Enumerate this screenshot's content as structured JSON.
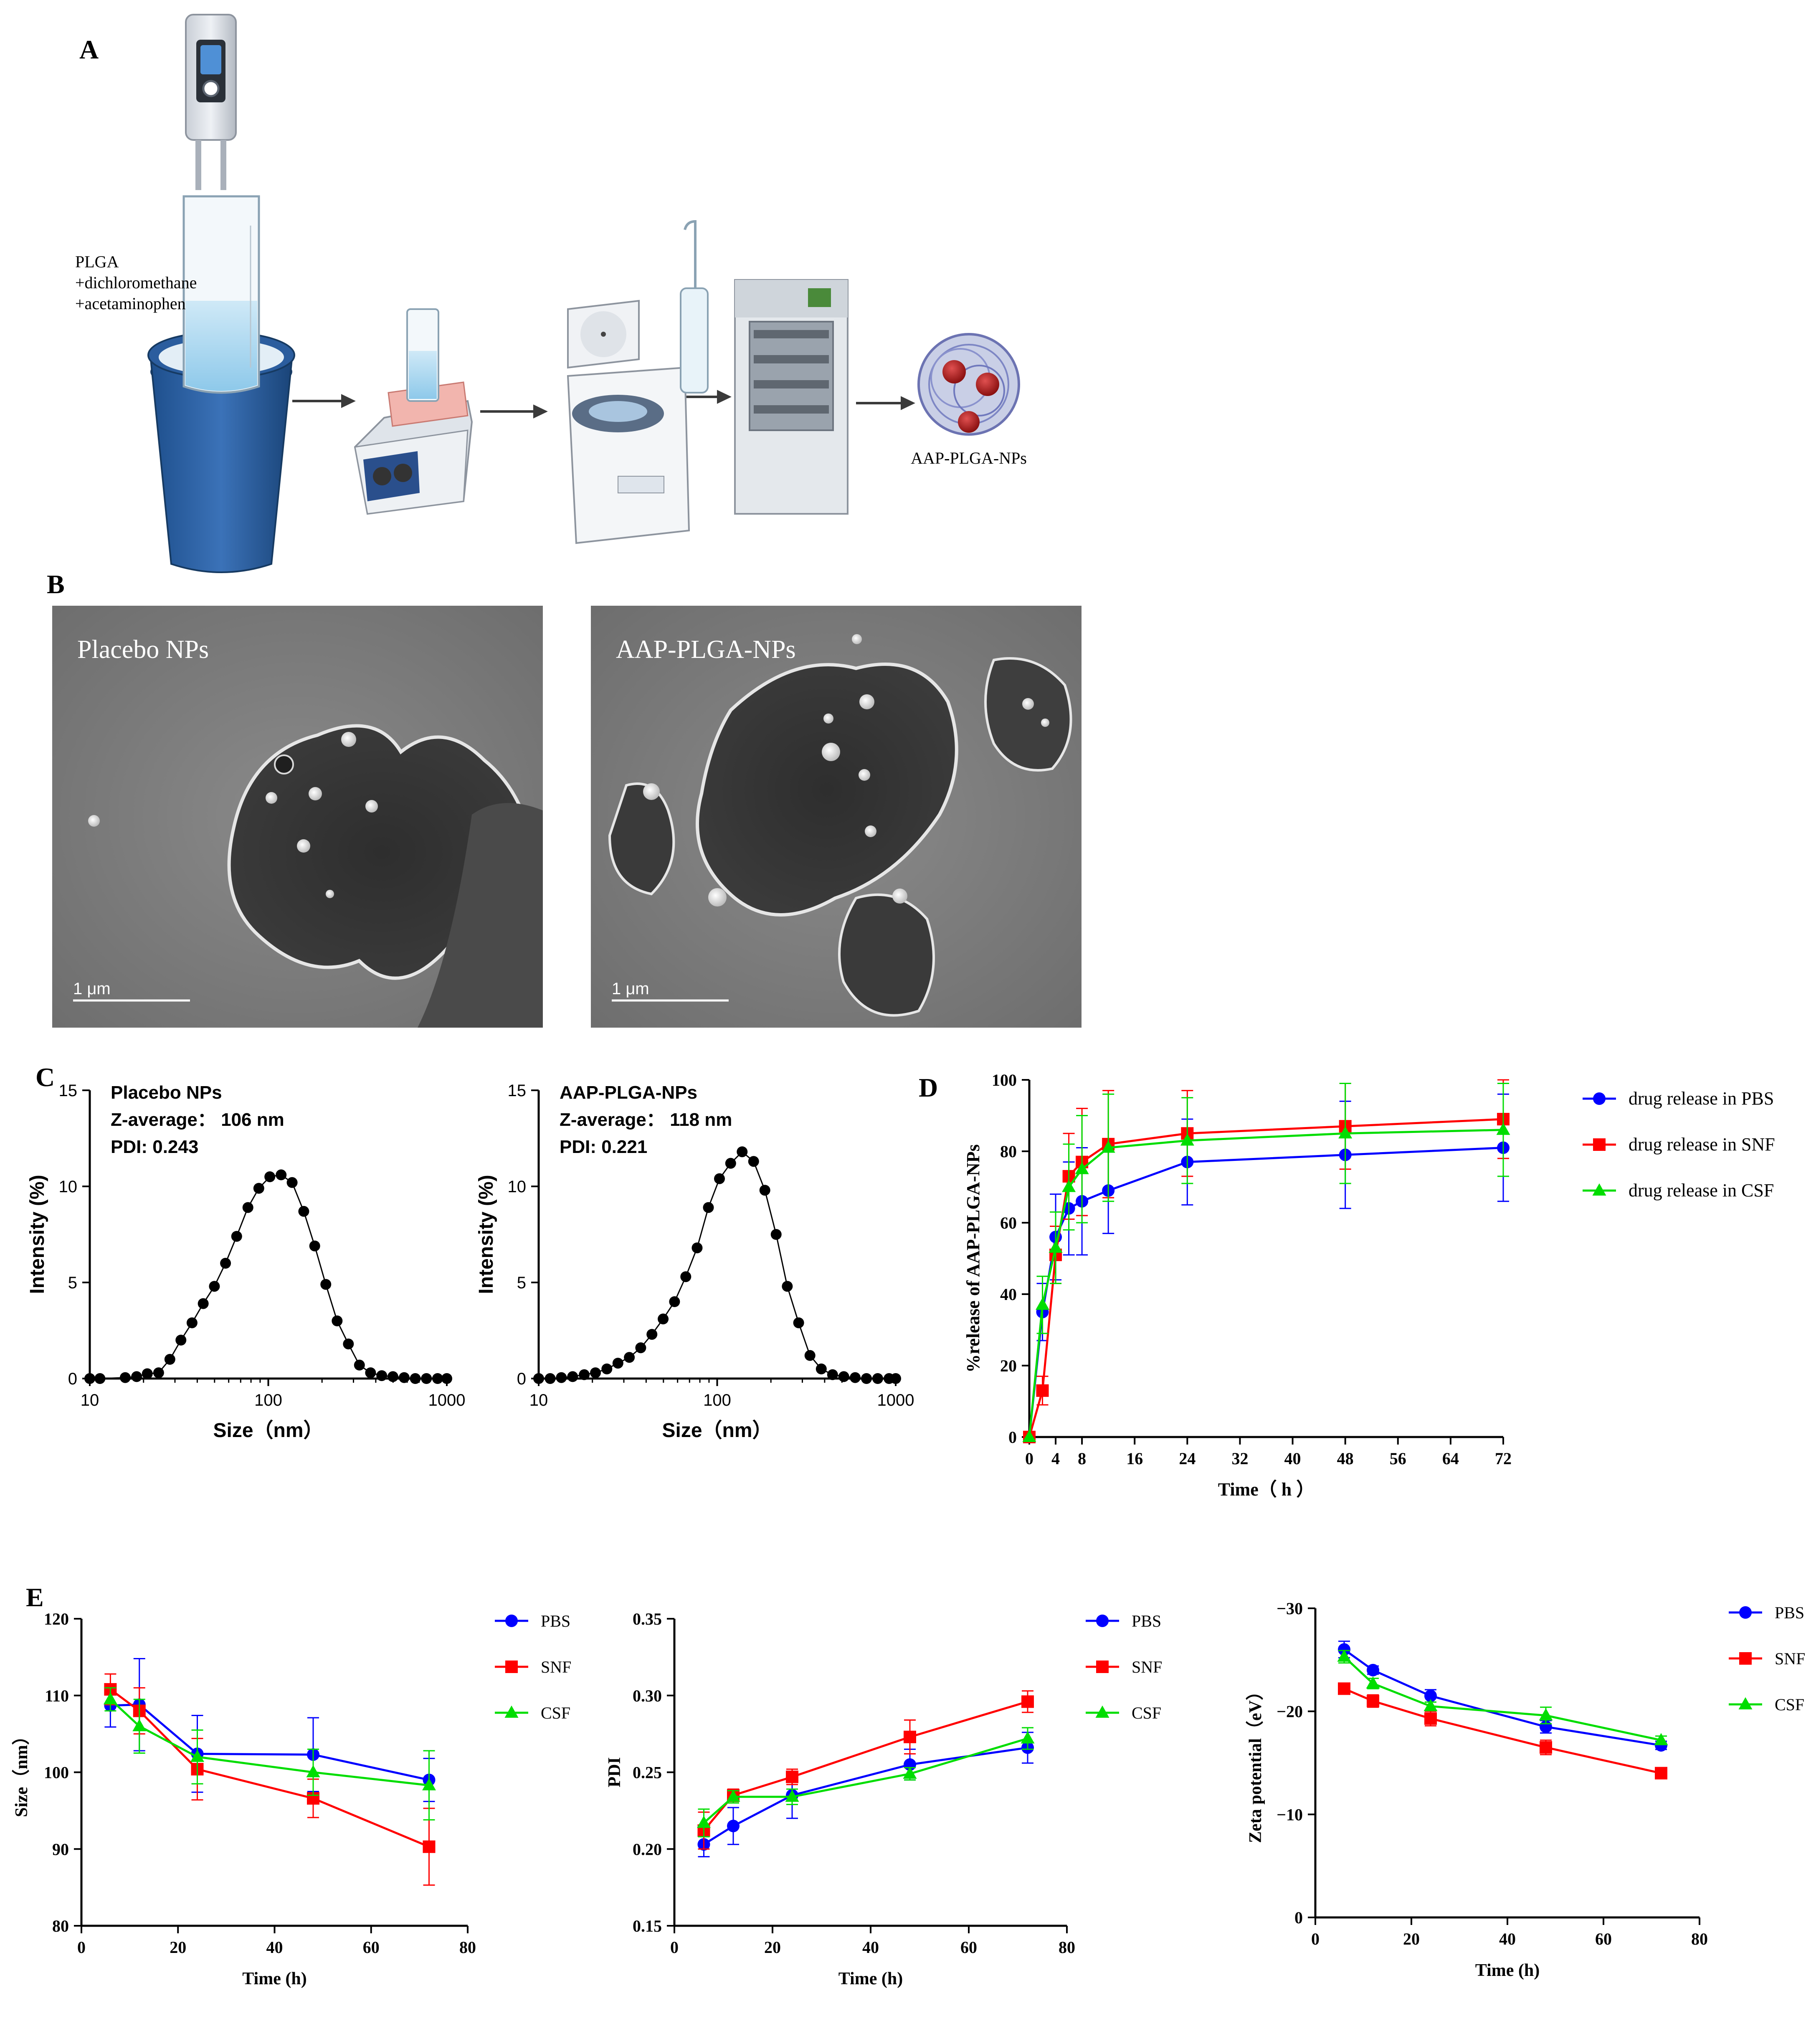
{
  "panels": {
    "A": {
      "letter": "A",
      "mixture_label_lines": [
        "PLGA",
        "+dichloromethane",
        "+acetaminophen"
      ],
      "product_label": "AAP-PLGA-NPs"
    },
    "B": {
      "letter": "B",
      "images": [
        {
          "label": "Placebo NPs",
          "scale": "1 μm"
        },
        {
          "label": "AAP-PLGA-NPs",
          "scale": "1 μm"
        }
      ]
    },
    "C": {
      "letter": "C",
      "annotations": [
        {
          "lines": [
            "Placebo NPs",
            "Z-average：  106 nm",
            "PDI: 0.243"
          ]
        },
        {
          "lines": [
            "AAP-PLGA-NPs",
            "Z-average：  118 nm",
            "PDI: 0.221"
          ]
        }
      ]
    },
    "D": {
      "letter": "D"
    },
    "E": {
      "letter": "E"
    }
  },
  "colors": {
    "pbs": "#0000ff",
    "snf": "#ff0000",
    "csf": "#00dd00",
    "dls": "#000000"
  },
  "chart_data": [
    {
      "id": "C-left",
      "type": "line",
      "xlabel": "Size（nm）",
      "ylabel": "Intensity (%)",
      "xscale": "log",
      "xlim": [
        10,
        1000
      ],
      "ylim": [
        0,
        15
      ],
      "xticks": [
        10,
        100,
        1000
      ],
      "yticks": [
        0,
        5,
        10,
        15
      ],
      "series": [
        {
          "x": [
            10,
            11.4,
            15.8,
            18.3,
            21,
            24.3,
            28.1,
            32.4,
            37.4,
            43.2,
            49.9,
            57.6,
            66.5,
            76.9,
            88.5,
            102,
            118,
            136,
            158,
            182,
            210,
            243,
            281,
            324,
            374,
            432,
            499,
            577,
            666,
            769,
            888,
            1000
          ],
          "y": [
            0,
            0,
            0.05,
            0.1,
            0.25,
            0.3,
            1.0,
            2.0,
            2.9,
            3.9,
            4.8,
            6.0,
            7.4,
            8.9,
            9.9,
            10.5,
            10.6,
            10.2,
            8.7,
            6.9,
            4.9,
            3.0,
            1.8,
            0.7,
            0.3,
            0.15,
            0.1,
            0.05,
            0,
            0,
            0,
            0
          ]
        }
      ]
    },
    {
      "id": "C-right",
      "type": "line",
      "xlabel": "Size（nm）",
      "ylabel": "Intensity (%)",
      "xscale": "log",
      "xlim": [
        10,
        1000
      ],
      "ylim": [
        0,
        15
      ],
      "xticks": [
        10,
        100,
        1000
      ],
      "yticks": [
        0,
        5,
        10,
        15
      ],
      "series": [
        {
          "x": [
            10,
            11.6,
            13.4,
            15.5,
            18,
            20.8,
            24.1,
            27.8,
            32.2,
            37.3,
            43.1,
            49.8,
            57.7,
            66.7,
            77.2,
            89.3,
            103,
            119,
            138,
            160,
            185,
            214,
            247,
            286,
            331,
            383,
            443,
            512,
            593,
            686,
            793,
            918,
            1000
          ],
          "y": [
            0,
            0,
            0.05,
            0.1,
            0.2,
            0.3,
            0.5,
            0.8,
            1.1,
            1.6,
            2.3,
            3.1,
            4.0,
            5.3,
            6.8,
            8.9,
            10.4,
            11.2,
            11.8,
            11.3,
            9.8,
            7.5,
            4.8,
            2.9,
            1.2,
            0.5,
            0.2,
            0.1,
            0.05,
            0,
            0,
            0,
            0
          ]
        }
      ]
    },
    {
      "id": "D",
      "type": "line",
      "xlabel": "Time（ h ）",
      "ylabel": "%release of AAP-PLGA-NPs",
      "xlim": [
        0,
        72
      ],
      "ylim": [
        0,
        100
      ],
      "xticks": [
        0,
        4,
        8,
        16,
        24,
        32,
        40,
        48,
        56,
        64,
        72
      ],
      "yticks": [
        0,
        20,
        40,
        60,
        80,
        100
      ],
      "legend_position": "right",
      "series": [
        {
          "name": "drug release in PBS",
          "color_key": "pbs",
          "marker": "circle",
          "x": [
            0,
            2,
            4,
            6,
            8,
            12,
            24,
            48,
            72
          ],
          "y": [
            0,
            35,
            56,
            64,
            66,
            69,
            77,
            79,
            81
          ],
          "err": [
            0,
            8,
            12,
            13,
            15,
            12,
            12,
            15,
            15
          ]
        },
        {
          "name": "drug release in SNF",
          "color_key": "snf",
          "marker": "square",
          "x": [
            0,
            2,
            4,
            6,
            8,
            12,
            24,
            48,
            72
          ],
          "y": [
            0,
            13,
            51,
            73,
            77,
            82,
            85,
            87,
            89
          ],
          "err": [
            0,
            4,
            8,
            12,
            15,
            15,
            12,
            12,
            11
          ]
        },
        {
          "name": "drug release in CSF",
          "color_key": "csf",
          "marker": "triangle",
          "x": [
            0,
            2,
            4,
            6,
            8,
            12,
            24,
            48,
            72
          ],
          "y": [
            0,
            37,
            53,
            70,
            75,
            81,
            83,
            85,
            86
          ],
          "err": [
            0,
            8,
            10,
            12,
            15,
            15,
            12,
            14,
            13
          ]
        }
      ]
    },
    {
      "id": "E-size",
      "type": "line",
      "xlabel": "Time (h)",
      "ylabel": "Size（nm）",
      "xlim": [
        0,
        80
      ],
      "ylim": [
        80,
        120
      ],
      "xticks": [
        0,
        20,
        40,
        60,
        80
      ],
      "yticks": [
        80,
        90,
        100,
        110,
        120
      ],
      "legend_position": "right",
      "series": [
        {
          "name": "PBS",
          "color_key": "pbs",
          "marker": "circle",
          "x": [
            6,
            12,
            24,
            48,
            72
          ],
          "y": [
            108.7,
            108.8,
            102.4,
            102.3,
            99.0
          ],
          "err": [
            2.8,
            6.0,
            5.0,
            4.8,
            2.8
          ]
        },
        {
          "name": "SNF",
          "color_key": "snf",
          "marker": "square",
          "x": [
            6,
            12,
            24,
            48,
            72
          ],
          "y": [
            110.8,
            108.0,
            100.4,
            96.6,
            90.3
          ],
          "err": [
            2.0,
            3.0,
            4.0,
            2.5,
            5.0
          ]
        },
        {
          "name": "CSF",
          "color_key": "csf",
          "marker": "triangle",
          "x": [
            6,
            12,
            24,
            48,
            72
          ],
          "y": [
            109.5,
            106.0,
            102.0,
            100.0,
            98.3
          ],
          "err": [
            1.5,
            3.5,
            3.5,
            3.0,
            4.5
          ]
        }
      ]
    },
    {
      "id": "E-pdi",
      "type": "line",
      "xlabel": "Time (h)",
      "ylabel": "PDI",
      "xlim": [
        0,
        80
      ],
      "ylim": [
        0.15,
        0.35
      ],
      "xticks": [
        0,
        20,
        40,
        60,
        80
      ],
      "yticks": [
        0.15,
        0.2,
        0.25,
        0.3,
        0.35
      ],
      "ytick_labels": [
        "0.15",
        "0.20",
        "0.25",
        "0.30",
        "0.35"
      ],
      "legend_position": "right",
      "series": [
        {
          "name": "PBS",
          "color_key": "pbs",
          "marker": "circle",
          "x": [
            6,
            12,
            24,
            48,
            72
          ],
          "y": [
            0.203,
            0.215,
            0.235,
            0.255,
            0.266
          ],
          "err": [
            0.008,
            0.012,
            0.015,
            0.01,
            0.01
          ]
        },
        {
          "name": "SNF",
          "color_key": "snf",
          "marker": "square",
          "x": [
            6,
            12,
            24,
            48,
            72
          ],
          "y": [
            0.212,
            0.235,
            0.247,
            0.273,
            0.296
          ],
          "err": [
            0.012,
            0.004,
            0.005,
            0.011,
            0.007
          ]
        },
        {
          "name": "CSF",
          "color_key": "csf",
          "marker": "triangle",
          "x": [
            6,
            12,
            24,
            48,
            72
          ],
          "y": [
            0.217,
            0.234,
            0.234,
            0.249,
            0.272
          ],
          "err": [
            0.009,
            0.004,
            0.005,
            0.004,
            0.007
          ]
        }
      ]
    },
    {
      "id": "E-zeta",
      "type": "line",
      "xlabel": "Time (h)",
      "ylabel": "Zeta potential（eV）",
      "xlim": [
        0,
        80
      ],
      "ylim": [
        0,
        -30
      ],
      "xticks": [
        0,
        20,
        40,
        60,
        80
      ],
      "yticks": [
        0,
        -10,
        -20,
        -30
      ],
      "legend_position": "right",
      "series": [
        {
          "name": "PBS",
          "color_key": "pbs",
          "marker": "circle",
          "x": [
            6,
            12,
            24,
            48,
            72
          ],
          "y": [
            -26.0,
            -24.0,
            -21.5,
            -18.5,
            -16.7
          ],
          "err": [
            0.8,
            0.4,
            0.6,
            0.6,
            0.4
          ]
        },
        {
          "name": "SNF",
          "color_key": "snf",
          "marker": "square",
          "x": [
            6,
            12,
            24,
            48,
            72
          ],
          "y": [
            -22.2,
            -21.0,
            -19.3,
            -16.5,
            -14.0
          ],
          "err": [
            0.3,
            0.6,
            0.7,
            0.7,
            0.3
          ]
        },
        {
          "name": "CSF",
          "color_key": "csf",
          "marker": "triangle",
          "x": [
            6,
            12,
            24,
            48,
            72
          ],
          "y": [
            -25.3,
            -22.7,
            -20.5,
            -19.6,
            -17.2
          ],
          "err": [
            0.6,
            0.5,
            0.4,
            0.8,
            0.4
          ]
        }
      ]
    }
  ]
}
